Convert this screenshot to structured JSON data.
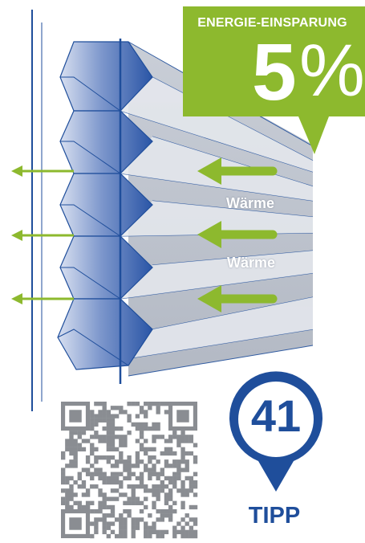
{
  "badge": {
    "title": "ENERGIE-EINSPARUNG",
    "value": "5",
    "unit": "%",
    "color": "#8db92e"
  },
  "heat_labels": [
    "Wärme",
    "Wärme"
  ],
  "tip": {
    "number": "41",
    "label": "TIPP",
    "color": "#1f4e9b"
  },
  "colors": {
    "blind_blue": "#2d5fae",
    "cell_grey": "#c5cad3",
    "arrow_green": "#8db92e",
    "line_blue": "#1f4e9b"
  },
  "icons": [
    "qr-code-icon",
    "heat-arrow-icon",
    "map-pin-icon"
  ]
}
